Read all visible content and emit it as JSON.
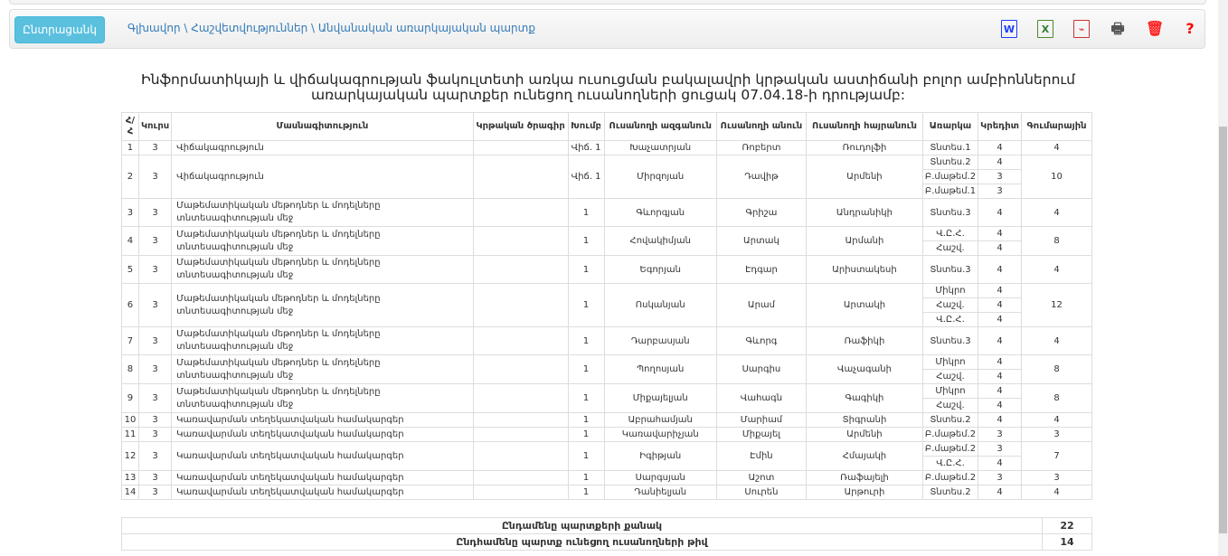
{
  "toolbar": {
    "list_button": "Ընտրացանկ",
    "breadcrumb": "Գլխավոր \\ Հաշվետվություններ \\ Անվանական առարկայական պարտք",
    "icons": [
      "word-export-icon",
      "excel-export-icon",
      "pdf-export-icon",
      "print-icon",
      "delete-icon",
      "help-icon"
    ],
    "icon_labels": {
      "word": "W",
      "excel": "X",
      "help": "?"
    }
  },
  "title": "Ինֆորմատիկայի և վիճակագրության ֆակուլտետի առկա ուսուցման բակալավրի կրթական աստիճանի բոլոր ամբիոններում առարկայական պարտքեր ունեցող ուսանողների ցուցակ 07.04.18-ի դրությամբ:",
  "columns": [
    "Հ/Հ",
    "Կուրս",
    "Մասնագիտություն",
    "Կրթական ծրագիր",
    "Խումբ",
    "Ուսանողի ազգանուն",
    "Ուսանողի անուն",
    "Ուսանողի հայրանուն",
    "Առարկա",
    "Կրեդիտ",
    "Գումարային"
  ],
  "rows": [
    {
      "n": "1",
      "course": "3",
      "spec": "Վիճակագրություն",
      "program": "",
      "group": "Վիճ. 1",
      "surname": "Խաչատրյան",
      "name": "Ռոբերտ",
      "patronymic": "Ռուդոլֆի",
      "subjects": [
        [
          "Տնտես.1",
          "4"
        ]
      ],
      "total": "4"
    },
    {
      "n": "2",
      "course": "3",
      "spec": "Վիճակագրություն",
      "program": "",
      "group": "Վիճ. 1",
      "surname": "Միրզոյան",
      "name": "Դավիթ",
      "patronymic": "Արմենի",
      "subjects": [
        [
          "Տնտես.2",
          "4"
        ],
        [
          "Բ.մաթեմ.2",
          "3"
        ],
        [
          "Բ.մաթեմ.1",
          "3"
        ]
      ],
      "total": "10"
    },
    {
      "n": "3",
      "course": "3",
      "spec": "Մաթեմատիկական մեթոդներ և մոդելները տնտեսագիտության մեջ",
      "program": "",
      "group": "1",
      "surname": "Գևորգյան",
      "name": "Գրիշա",
      "patronymic": "Անդրանիկի",
      "subjects": [
        [
          "Տնտես.3",
          "4"
        ]
      ],
      "total": "4"
    },
    {
      "n": "4",
      "course": "3",
      "spec": "Մաթեմատիկական մեթոդներ և մոդելները տնտեսագիտության մեջ",
      "program": "",
      "group": "1",
      "surname": "Հովակիմյան",
      "name": "Արտակ",
      "patronymic": "Արմանի",
      "subjects": [
        [
          "Վ.Ը.Հ.",
          "4"
        ],
        [
          "Հաշվ.",
          "4"
        ]
      ],
      "total": "8"
    },
    {
      "n": "5",
      "course": "3",
      "spec": "Մաթեմատիկական մեթոդներ և մոդելները տնտեսագիտության մեջ",
      "program": "",
      "group": "1",
      "surname": "Եգորյան",
      "name": "Էդգար",
      "patronymic": "Արիստակեսի",
      "subjects": [
        [
          "Տնտես.3",
          "4"
        ]
      ],
      "total": "4"
    },
    {
      "n": "6",
      "course": "3",
      "spec": "Մաթեմատիկական մեթոդներ և մոդելները տնտեսագիտության մեջ",
      "program": "",
      "group": "1",
      "surname": "Ոսկանյան",
      "name": "Արամ",
      "patronymic": "Արտակի",
      "subjects": [
        [
          "Միկրո",
          "4"
        ],
        [
          "Հաշվ.",
          "4"
        ],
        [
          "Վ.Ը.Հ.",
          "4"
        ]
      ],
      "total": "12"
    },
    {
      "n": "7",
      "course": "3",
      "spec": "Մաթեմատիկական մեթոդներ և մոդելները տնտեսագիտության մեջ",
      "program": "",
      "group": "1",
      "surname": "Դարբասյան",
      "name": "Գևորգ",
      "patronymic": "Ռաֆիկի",
      "subjects": [
        [
          "Տնտես.3",
          "4"
        ]
      ],
      "total": "4"
    },
    {
      "n": "8",
      "course": "3",
      "spec": "Մաթեմատիկական մեթոդներ և մոդելները տնտեսագիտության մեջ",
      "program": "",
      "group": "1",
      "surname": "Պողոսյան",
      "name": "Սարգիս",
      "patronymic": "Վաչագանի",
      "subjects": [
        [
          "Միկրո",
          "4"
        ],
        [
          "Հաշվ.",
          "4"
        ]
      ],
      "total": "8"
    },
    {
      "n": "9",
      "course": "3",
      "spec": "Մաթեմատիկական մեթոդներ և մոդելները տնտեսագիտության մեջ",
      "program": "",
      "group": "1",
      "surname": "Միքայելյան",
      "name": "Վահագն",
      "patronymic": "Գագիկի",
      "subjects": [
        [
          "Միկրո",
          "4"
        ],
        [
          "Հաշվ.",
          "4"
        ]
      ],
      "total": "8"
    },
    {
      "n": "10",
      "course": "3",
      "spec": "Կառավարման տեղեկատվական համակարգեր",
      "program": "",
      "group": "1",
      "surname": "Աբրահամյան",
      "name": "Մարիամ",
      "patronymic": "Տիգրանի",
      "subjects": [
        [
          "Տնտես.2",
          "4"
        ]
      ],
      "total": "4"
    },
    {
      "n": "11",
      "course": "3",
      "spec": "Կառավարման տեղեկատվական համակարգեր",
      "program": "",
      "group": "1",
      "surname": "Կառավարիչյան",
      "name": "Միքայել",
      "patronymic": "Արմենի",
      "subjects": [
        [
          "Բ.մաթեմ.2",
          "3"
        ]
      ],
      "total": "3"
    },
    {
      "n": "12",
      "course": "3",
      "spec": "Կառավարման տեղեկատվական համակարգեր",
      "program": "",
      "group": "1",
      "surname": "Իգիթյան",
      "name": "Էմին",
      "patronymic": "Հմայակի",
      "subjects": [
        [
          "Բ.մաթեմ.2",
          "3"
        ],
        [
          "Վ.Ը.Հ.",
          "4"
        ]
      ],
      "total": "7"
    },
    {
      "n": "13",
      "course": "3",
      "spec": "Կառավարման տեղեկատվական համակարգեր",
      "program": "",
      "group": "1",
      "surname": "Սարգսյան",
      "name": "Աշոտ",
      "patronymic": "Ռաֆայելի",
      "subjects": [
        [
          "Բ.մաթեմ.2",
          "3"
        ]
      ],
      "total": "3"
    },
    {
      "n": "14",
      "course": "3",
      "spec": "Կառավարման տեղեկատվական համակարգեր",
      "program": "",
      "group": "1",
      "surname": "Դանիելյան",
      "name": "Սուրեն",
      "patronymic": "Արթուրի",
      "subjects": [
        [
          "Տնտես.2",
          "4"
        ]
      ],
      "total": "4"
    }
  ],
  "totals": [
    {
      "label": "Ընդամենը պարտքերի քանակ",
      "value": "22"
    },
    {
      "label": "Ընդհամենը պարտք ունեցող ուսանողների թիվ",
      "value": "14"
    }
  ]
}
